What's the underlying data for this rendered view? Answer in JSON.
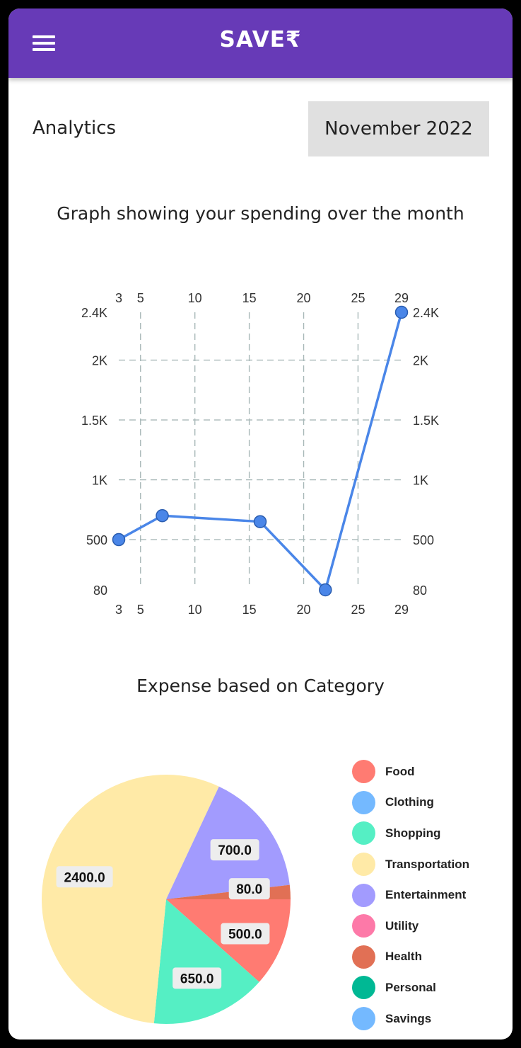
{
  "appbar": {
    "title": "SAVE₹",
    "menu_icon": "menu-icon"
  },
  "analytics": {
    "label": "Analytics",
    "month": "November 2022"
  },
  "line_heading": "Graph showing your spending over the month",
  "pie_heading": "Expense based on Category",
  "chart_data": [
    {
      "type": "line",
      "title": "Graph showing your spending over the month",
      "x": [
        3,
        7,
        16,
        22,
        29
      ],
      "values": [
        500,
        700,
        650,
        80,
        2400
      ],
      "xlim": [
        3,
        29
      ],
      "ylim": [
        80,
        2400
      ],
      "x_ticks": [
        3,
        5,
        10,
        15,
        20,
        25,
        29
      ],
      "y_ticks": [
        80,
        500,
        1000,
        1500,
        2000,
        2400
      ],
      "y_tick_labels": [
        "80",
        "500",
        "1K",
        "1.5K",
        "2K",
        "2.4K"
      ],
      "grid": true,
      "line_color": "#4A86E8"
    },
    {
      "type": "pie",
      "title": "Expense based on Category",
      "slices": [
        {
          "label": "Food",
          "value": 500,
          "value_label": "500.0",
          "color": "#FF7B72"
        },
        {
          "label": "Shopping",
          "value": 650,
          "value_label": "650.0",
          "color": "#55EFC4"
        },
        {
          "label": "Transportation",
          "value": 2400,
          "value_label": "2400.0",
          "color": "#FFEAA7"
        },
        {
          "label": "Entertainment",
          "value": 700,
          "value_label": "700.0",
          "color": "#A29BFE"
        },
        {
          "label": "Health",
          "value": 80,
          "value_label": "80.0",
          "color": "#E17055"
        }
      ],
      "legend": [
        {
          "label": "Food",
          "color": "#FF7B72"
        },
        {
          "label": "Clothing",
          "color": "#74B9FF"
        },
        {
          "label": "Shopping",
          "color": "#55EFC4"
        },
        {
          "label": "Transportation",
          "color": "#FFEAA7"
        },
        {
          "label": "Entertainment",
          "color": "#A29BFE"
        },
        {
          "label": "Utility",
          "color": "#FD79A8"
        },
        {
          "label": "Health",
          "color": "#E17055"
        },
        {
          "label": "Personal",
          "color": "#00B894"
        },
        {
          "label": "Savings",
          "color": "#74B9FF"
        }
      ],
      "legend_position": "right"
    }
  ]
}
